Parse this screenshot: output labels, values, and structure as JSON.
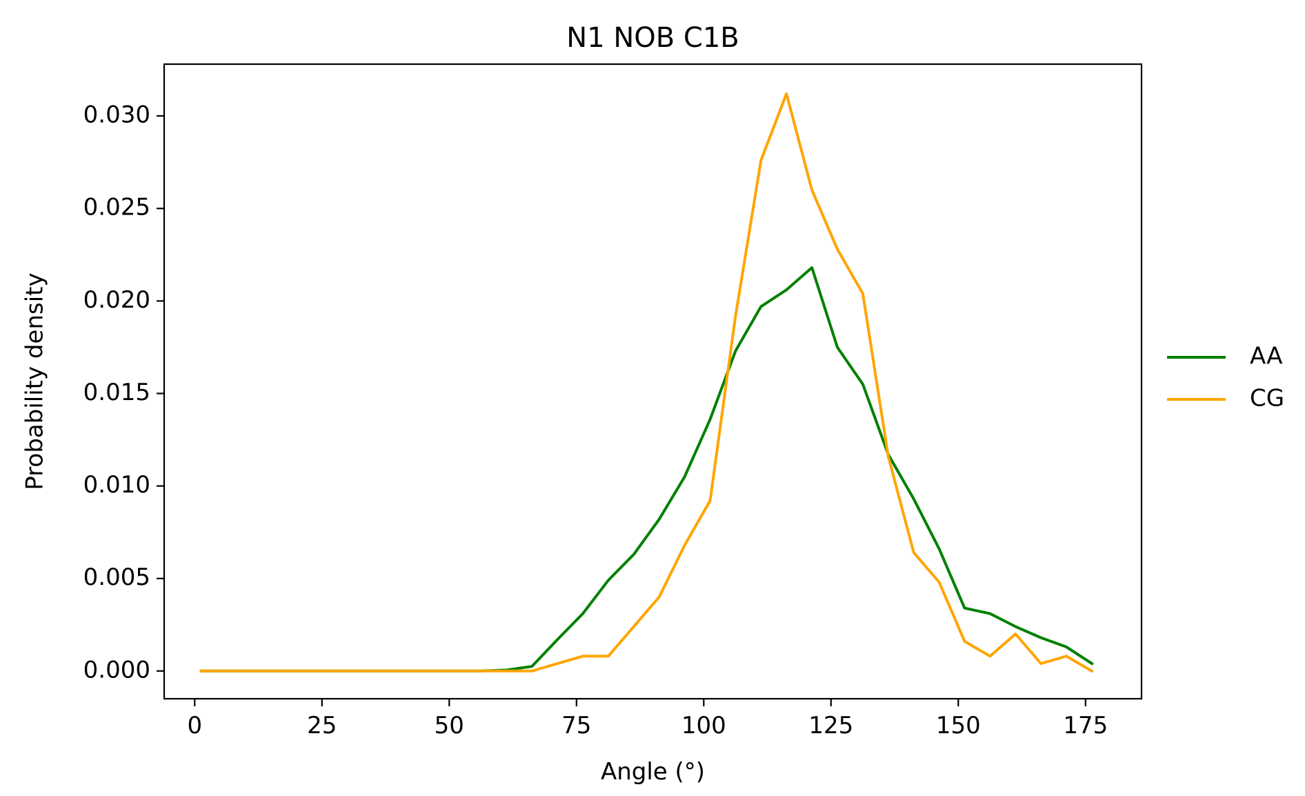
{
  "chart_data": {
    "type": "line",
    "title": "N1 NOB C1B",
    "xlabel": "Angle (°)",
    "ylabel": "Probability density",
    "xlim": [
      -6,
      186
    ],
    "ylim": [
      -0.0015,
      0.0328
    ],
    "xticks": [
      0,
      25,
      50,
      75,
      100,
      125,
      150,
      175
    ],
    "xtick_labels": [
      "0",
      "25",
      "50",
      "75",
      "100",
      "125",
      "150",
      "175"
    ],
    "yticks": [
      0.0,
      0.005,
      0.01,
      0.015,
      0.02,
      0.025,
      0.03
    ],
    "ytick_labels": [
      "0.000",
      "0.005",
      "0.010",
      "0.015",
      "0.020",
      "0.025",
      "0.030"
    ],
    "grid": false,
    "legend_position": "outside-right",
    "x": [
      1.25,
      6.25,
      11.25,
      16.25,
      21.25,
      26.25,
      31.25,
      36.25,
      41.25,
      46.25,
      51.25,
      56.25,
      61.25,
      66.25,
      71.25,
      76.25,
      81.25,
      86.25,
      91.25,
      96.25,
      101.25,
      106.25,
      111.25,
      116.25,
      121.25,
      126.25,
      131.25,
      136.25,
      141.25,
      146.25,
      151.25,
      156.25,
      161.25,
      166.25,
      171.25,
      176.25
    ],
    "series": [
      {
        "name": "AA",
        "color": "#008000",
        "values": [
          0,
          0,
          0,
          0,
          0,
          0,
          0,
          0,
          0,
          0,
          0,
          0,
          5e-05,
          0.00025,
          0.0017,
          0.0031,
          0.0049,
          0.0063,
          0.0082,
          0.0105,
          0.0136,
          0.0173,
          0.0197,
          0.0206,
          0.0218,
          0.0175,
          0.0155,
          0.0117,
          0.0093,
          0.0066,
          0.0034,
          0.0031,
          0.0024,
          0.0018,
          0.0013,
          0.0004
        ]
      },
      {
        "name": "CG",
        "color": "#ffa500",
        "values": [
          0,
          0,
          0,
          0,
          0,
          0,
          0,
          0,
          0,
          0,
          0,
          0,
          0,
          0,
          0.0004,
          0.0008,
          0.0008,
          0.0024,
          0.004,
          0.0068,
          0.0092,
          0.0192,
          0.0276,
          0.0312,
          0.026,
          0.0228,
          0.0204,
          0.0116,
          0.0064,
          0.0048,
          0.0016,
          0.0008,
          0.002,
          0.0004,
          0.0008,
          0
        ]
      }
    ]
  }
}
